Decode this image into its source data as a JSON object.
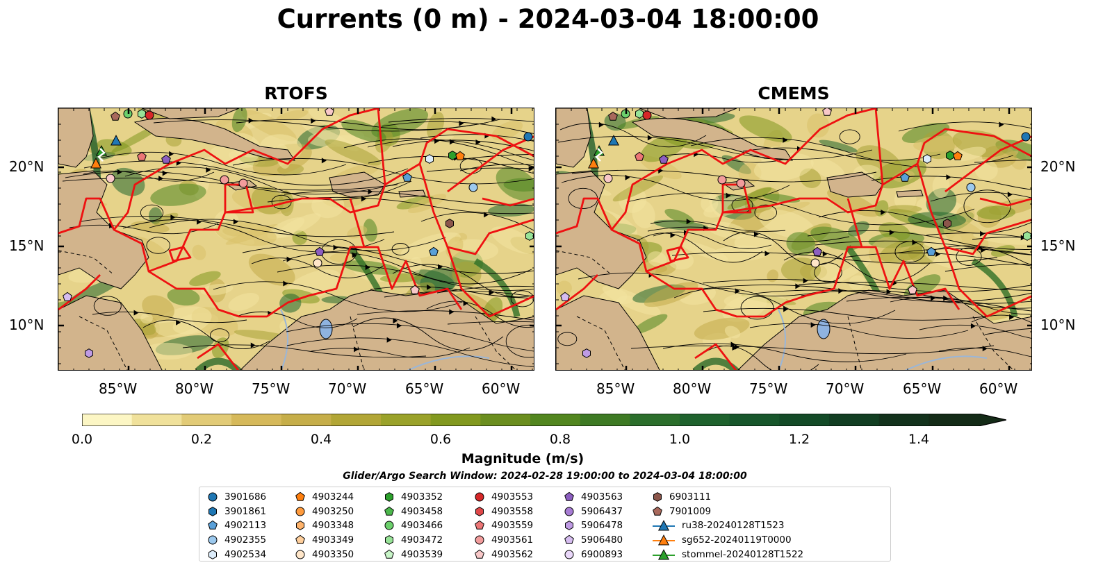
{
  "title": "Currents (0 m) - 2024-03-04 18:00:00",
  "panels": [
    {
      "title": "RTOFS"
    },
    {
      "title": "CMEMS"
    }
  ],
  "lat_ticks": [
    "20°N",
    "15°N",
    "10°N"
  ],
  "lon_ticks": [
    "85°W",
    "80°W",
    "75°W",
    "70°W",
    "65°W",
    "60°W"
  ],
  "colorbar": {
    "label": "Magnitude (m/s)",
    "ticks": [
      "0.0",
      "0.2",
      "0.4",
      "0.6",
      "0.8",
      "1.0",
      "1.2",
      "1.4"
    ],
    "colors": [
      "#fcf6c4",
      "#f0e19b",
      "#e2cb77",
      "#d6b95a",
      "#c6ae49",
      "#b2a636",
      "#9aa22a",
      "#82991f",
      "#6b8e1f",
      "#52861f",
      "#3e7a24",
      "#2b6e2b",
      "#1e622d",
      "#17562b",
      "#134a27",
      "#123e22",
      "#13321c",
      "#142b17"
    ],
    "vmin": 0,
    "vmax": 1.5,
    "extend": "max"
  },
  "search_window": "Glider/Argo Search Window: 2024-02-28 19:00:00 to 2024-03-04 18:00:00",
  "legend": [
    {
      "label": "3901686",
      "marker": "circle",
      "color": "#1f77b4"
    },
    {
      "label": "3901861",
      "marker": "hexagon",
      "color": "#1f77b4"
    },
    {
      "label": "4902113",
      "marker": "pentagon",
      "color": "#5aa0d8"
    },
    {
      "label": "4902355",
      "marker": "circle",
      "color": "#9cc9ee"
    },
    {
      "label": "4902534",
      "marker": "hexagon",
      "color": "#dcecfa"
    },
    {
      "label": "4903244",
      "marker": "pentagon",
      "color": "#ff7f0e"
    },
    {
      "label": "4903250",
      "marker": "circle",
      "color": "#ff9b3d"
    },
    {
      "label": "4903348",
      "marker": "hexagon",
      "color": "#ffb36b"
    },
    {
      "label": "4903349",
      "marker": "pentagon",
      "color": "#ffcf9c"
    },
    {
      "label": "4903350",
      "marker": "circle",
      "color": "#ffe6c9"
    },
    {
      "label": "4903352",
      "marker": "hexagon",
      "color": "#2ca02c"
    },
    {
      "label": "4903458",
      "marker": "pentagon",
      "color": "#4cb84c"
    },
    {
      "label": "4903466",
      "marker": "circle",
      "color": "#6cd06c"
    },
    {
      "label": "4903472",
      "marker": "hexagon",
      "color": "#97e397"
    },
    {
      "label": "4903539",
      "marker": "pentagon",
      "color": "#c8f5c8"
    },
    {
      "label": "4903553",
      "marker": "circle",
      "color": "#d62728"
    },
    {
      "label": "4903558",
      "marker": "hexagon",
      "color": "#e04849"
    },
    {
      "label": "4903559",
      "marker": "pentagon",
      "color": "#ec7676"
    },
    {
      "label": "4903561",
      "marker": "circle",
      "color": "#f29c9c"
    },
    {
      "label": "4903562",
      "marker": "pentagon",
      "color": "#f8c8c8"
    },
    {
      "label": "4903563",
      "marker": "pentagon",
      "color": "#8c5ec0"
    },
    {
      "label": "5906437",
      "marker": "circle",
      "color": "#a77cd4"
    },
    {
      "label": "5906478",
      "marker": "hexagon",
      "color": "#bf9be4"
    },
    {
      "label": "5906480",
      "marker": "pentagon",
      "color": "#d6bdf0"
    },
    {
      "label": "6900893",
      "marker": "circle",
      "color": "#ead8fa"
    },
    {
      "label": "6903111",
      "marker": "hexagon",
      "color": "#8c564b"
    },
    {
      "label": "7901009",
      "marker": "pentagon",
      "color": "#a9695c"
    },
    {
      "label": "ru38-20240128T1523",
      "marker": "line-triangle",
      "color": "#1f77b4"
    },
    {
      "label": "sg652-20240119T0000",
      "marker": "line-triangle",
      "color": "#ff7f0e"
    },
    {
      "label": "stommel-20240128T1522",
      "marker": "line-triangle",
      "color": "#2ca02c"
    }
  ]
}
